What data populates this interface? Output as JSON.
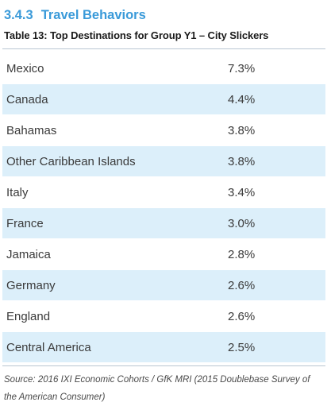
{
  "section": {
    "number": "3.4.3",
    "title": "Travel Behaviors"
  },
  "table": {
    "title": "Table 13: Top Destinations for Group Y1 – City Slickers",
    "rows": [
      {
        "destination": "Mexico",
        "percent": "7.3%"
      },
      {
        "destination": "Canada",
        "percent": "4.4%"
      },
      {
        "destination": "Bahamas",
        "percent": "3.8%"
      },
      {
        "destination": "Other Caribbean Islands",
        "percent": "3.8%"
      },
      {
        "destination": "Italy",
        "percent": "3.4%"
      },
      {
        "destination": "France",
        "percent": "3.0%"
      },
      {
        "destination": "Jamaica",
        "percent": "2.8%"
      },
      {
        "destination": "Germany",
        "percent": "2.6%"
      },
      {
        "destination": "England",
        "percent": "2.6%"
      },
      {
        "destination": "Central America",
        "percent": "2.5%"
      }
    ]
  },
  "source": "Source: 2016 IXI Economic Cohorts / GfK MRI (2015 Doublebase Survey of the American Consumer)",
  "colors": {
    "heading": "#3a9ad9",
    "shaded_row": "#dceffa"
  }
}
